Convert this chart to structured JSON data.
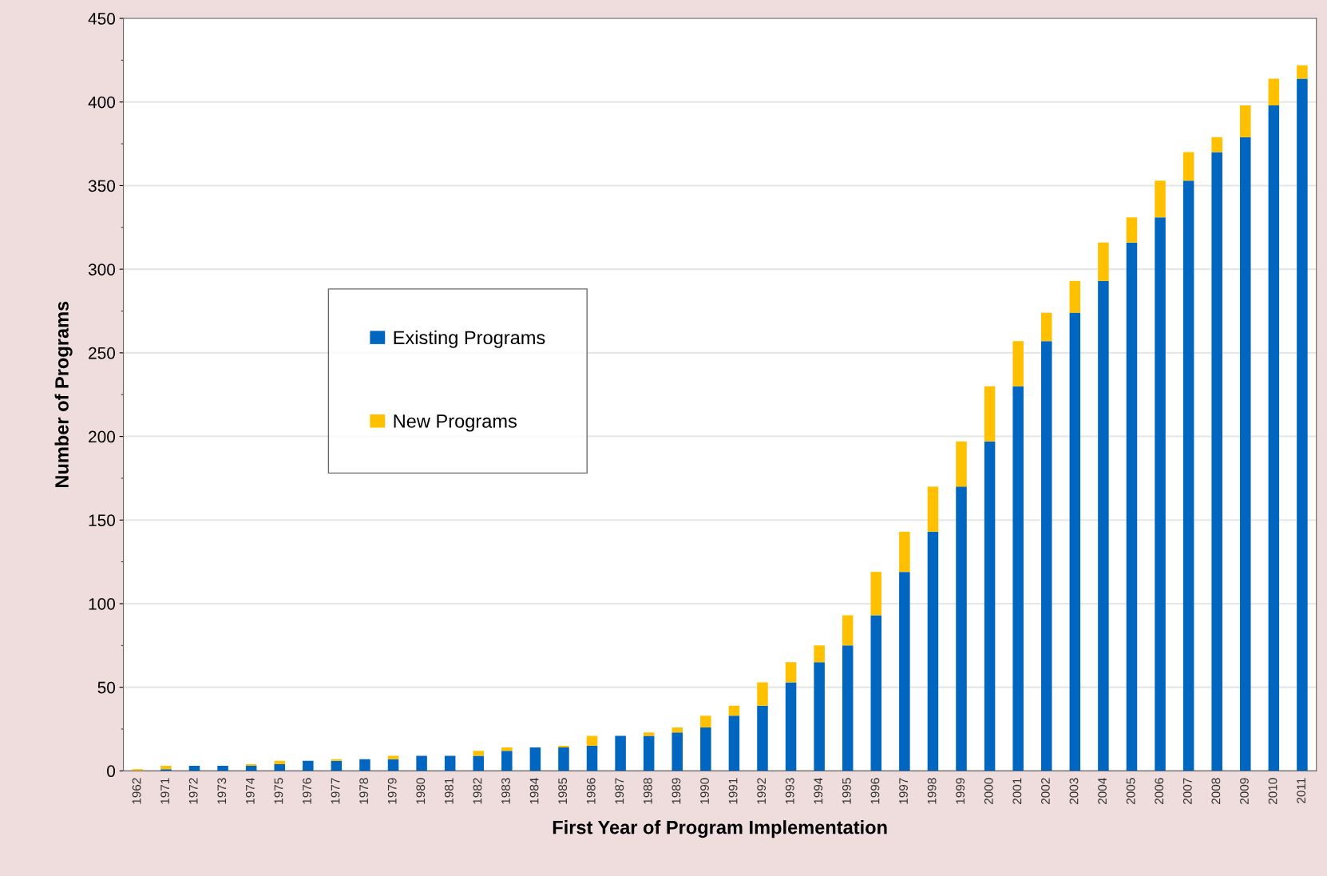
{
  "chart_data": {
    "type": "bar",
    "stacked": true,
    "xlabel": "First Year of Program Implementation",
    "ylabel": "Number of Programs",
    "categories": [
      "1962",
      "1971",
      "1972",
      "1973",
      "1974",
      "1975",
      "1976",
      "1977",
      "1978",
      "1979",
      "1980",
      "1981",
      "1982",
      "1983",
      "1984",
      "1985",
      "1986",
      "1987",
      "1988",
      "1989",
      "1990",
      "1991",
      "1992",
      "1993",
      "1994",
      "1995",
      "1996",
      "1997",
      "1998",
      "1999",
      "2000",
      "2001",
      "2002",
      "2003",
      "2004",
      "2005",
      "2006",
      "2007",
      "2008",
      "2009",
      "2010",
      "2011"
    ],
    "series": [
      {
        "name": "Existing Programs",
        "color": "#0066c0",
        "values": [
          0,
          1,
          3,
          3,
          3,
          4,
          6,
          6,
          7,
          7,
          9,
          9,
          9,
          12,
          14,
          14,
          15,
          21,
          21,
          23,
          26,
          33,
          39,
          53,
          65,
          75,
          93,
          119,
          143,
          170,
          197,
          230,
          257,
          274,
          293,
          316,
          331,
          353,
          370,
          379,
          398,
          414
        ]
      },
      {
        "name": "New Programs",
        "color": "#ffc000",
        "values": [
          1,
          2,
          0,
          0,
          1,
          2,
          0,
          1,
          0,
          2,
          0,
          0,
          3,
          2,
          0,
          1,
          6,
          0,
          2,
          3,
          7,
          6,
          14,
          12,
          10,
          18,
          26,
          24,
          27,
          27,
          33,
          27,
          17,
          19,
          23,
          15,
          22,
          17,
          9,
          19,
          16,
          8
        ]
      }
    ],
    "ylim": [
      0,
      450
    ],
    "yticks": [
      0,
      50,
      100,
      150,
      200,
      250,
      300,
      350,
      400,
      450
    ],
    "grid": "y",
    "legend": "center left"
  }
}
